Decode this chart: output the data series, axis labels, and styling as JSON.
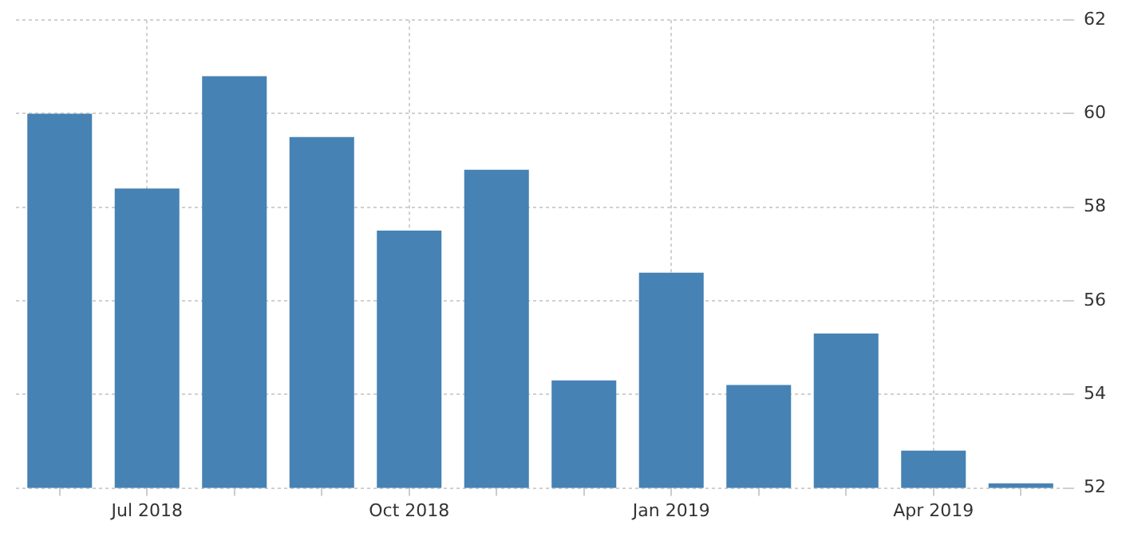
{
  "chart_data": {
    "type": "bar",
    "categories": [
      null,
      "Jul 2018",
      null,
      null,
      "Oct 2018",
      null,
      null,
      "Jan 2019",
      null,
      null,
      "Apr 2019",
      null
    ],
    "values": [
      60.0,
      58.4,
      60.8,
      59.5,
      57.5,
      58.8,
      54.3,
      56.6,
      54.2,
      55.3,
      52.8,
      52.1
    ],
    "color": "#4682b4",
    "ylim": [
      52,
      62
    ],
    "yticks": [
      52,
      54,
      56,
      58,
      60,
      62
    ],
    "grid": true
  }
}
